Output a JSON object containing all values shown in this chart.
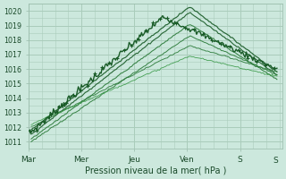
{
  "bg_color": "#cce8dd",
  "grid_color": "#aaccbb",
  "ylabel": "Pression niveau de la mer( hPa )",
  "xlabels": [
    "Mar",
    "Mer",
    "Jeu",
    "Ven",
    "S"
  ],
  "xtick_pos": [
    0,
    1,
    2,
    3,
    4
  ],
  "ylim": [
    1010.5,
    1020.5
  ],
  "yticks": [
    1011,
    1012,
    1013,
    1014,
    1015,
    1016,
    1017,
    1018,
    1019,
    1020
  ],
  "xlim": [
    0,
    4.8
  ],
  "dark_green": "#1a5c28",
  "mid_green": "#2a7a38",
  "light_green": "#3a9a48"
}
